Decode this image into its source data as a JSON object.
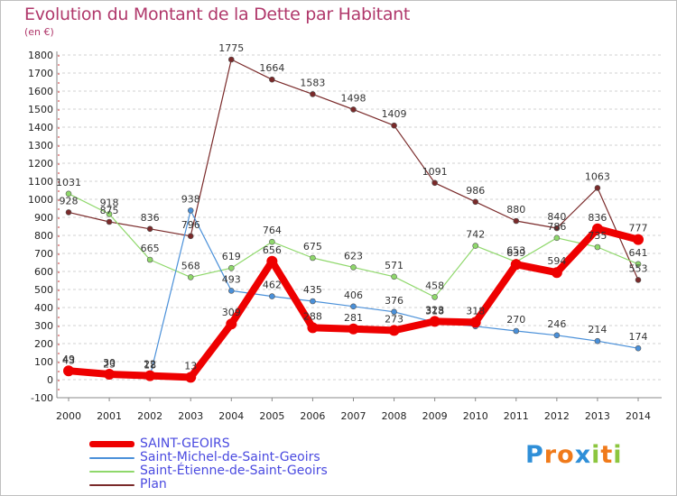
{
  "title": "Evolution du Montant de la Dette par Habitant",
  "unit": "(en €)",
  "logo": {
    "letters": [
      "P",
      "r",
      "o",
      "x",
      "i",
      "t",
      "i"
    ],
    "colors": [
      "#2f8fd8",
      "#f07a1a",
      "#f07a1a",
      "#2f8fd8",
      "#8cc63f",
      "#f07a1a",
      "#8cc63f"
    ]
  },
  "chart_data": {
    "type": "line",
    "x": [
      "2000",
      "2001",
      "2002",
      "2003",
      "2004",
      "2005",
      "2006",
      "2007",
      "2008",
      "2009",
      "2010",
      "2011",
      "2012",
      "2013",
      "2014"
    ],
    "ylim": [
      -100,
      1800
    ],
    "yticks": [
      "-100",
      "0",
      "100",
      "200",
      "300",
      "400",
      "500",
      "600",
      "700",
      "800",
      "900",
      "1000",
      "1100",
      "1200",
      "1300",
      "1400",
      "1500",
      "1600",
      "1700",
      "1800"
    ],
    "grid": "horizontal dashed",
    "legend_position": "bottom-left",
    "series": [
      {
        "name": "SAINT-GEOIRS",
        "color": "#ee0000",
        "values": [
          49,
          30,
          22,
          13,
          309,
          656,
          288,
          281,
          273,
          323,
          318,
          639,
          594,
          836,
          777
        ],
        "labels": [
          "49",
          "30",
          "22",
          "13",
          "309",
          "656",
          "288",
          "281",
          "273",
          "323",
          "318",
          "639",
          "594",
          "836",
          "777"
        ]
      },
      {
        "name": "Saint-Michel-de-Saint-Geoirs",
        "color": "#4a90d9",
        "values": [
          43,
          23,
          18,
          938,
          493,
          462,
          435,
          406,
          376,
          318,
          296,
          270,
          246,
          214,
          174
        ],
        "labels": [
          "43",
          "23",
          "18",
          "938",
          "493",
          "462",
          "435",
          "406",
          "376",
          "318",
          "",
          "270",
          "246",
          "214",
          "174"
        ]
      },
      {
        "name": "Saint-Étienne-de-Saint-Geoirs",
        "color": "#8fd86b",
        "values": [
          1031,
          918,
          665,
          568,
          619,
          764,
          675,
          623,
          571,
          458,
          742,
          653,
          786,
          735,
          641
        ],
        "labels": [
          "1031",
          "918",
          "665",
          "568",
          "619",
          "764",
          "675",
          "623",
          "571",
          "458",
          "742",
          "653",
          "786",
          "735",
          "641"
        ]
      },
      {
        "name": "Plan",
        "color": "#7a2a2a",
        "values": [
          928,
          875,
          836,
          796,
          1775,
          1664,
          1583,
          1498,
          1409,
          1091,
          986,
          880,
          840,
          1063,
          553
        ],
        "labels": [
          "928",
          "875",
          "836",
          "796",
          "1775",
          "1664",
          "1583",
          "1498",
          "1409",
          "1091",
          "986",
          "880",
          "840",
          "1063",
          "553"
        ]
      }
    ]
  }
}
